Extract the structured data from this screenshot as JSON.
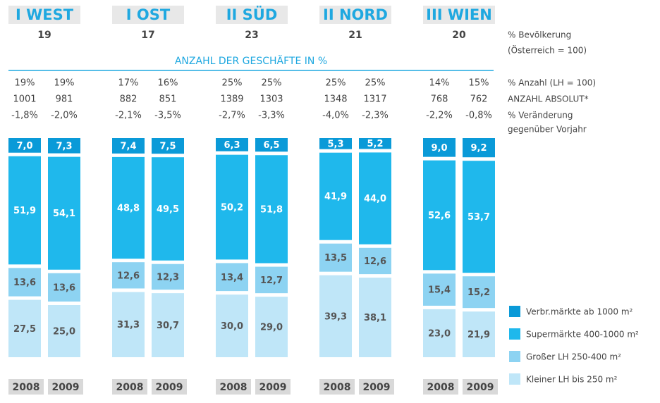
{
  "chart_data": {
    "type": "stacked_bar",
    "subtitle": "ANZAHL DER GESCHÄFTE IN %",
    "years": [
      "2008",
      "2009"
    ],
    "regions": [
      {
        "name": "I WEST",
        "population": 19,
        "share": [
          19,
          19
        ],
        "share_labels": [
          "19%",
          "19%"
        ],
        "count": [
          1001,
          981
        ],
        "change": [
          -1.8,
          -2.0
        ],
        "change_labels": [
          "-1,8%",
          "-2,0%"
        ]
      },
      {
        "name": "I OST",
        "population": 17,
        "share": [
          17,
          16
        ],
        "share_labels": [
          "17%",
          "16%"
        ],
        "count": [
          882,
          851
        ],
        "change": [
          -2.1,
          -3.5
        ],
        "change_labels": [
          "-2,1%",
          "-3,5%"
        ]
      },
      {
        "name": "II SÜD",
        "population": 23,
        "share": [
          25,
          25
        ],
        "share_labels": [
          "25%",
          "25%"
        ],
        "count": [
          1389,
          1303
        ],
        "change": [
          -2.7,
          -3.3
        ],
        "change_labels": [
          "-2,7%",
          "-3,3%"
        ]
      },
      {
        "name": "II NORD",
        "population": 21,
        "share": [
          25,
          25
        ],
        "share_labels": [
          "25%",
          "25%"
        ],
        "count": [
          1348,
          1317
        ],
        "change": [
          -4.0,
          -2.3
        ],
        "change_labels": [
          "-4,0%",
          "-2,3%"
        ]
      },
      {
        "name": "III WIEN",
        "population": 20,
        "share": [
          14,
          15
        ],
        "share_labels": [
          "14%",
          "15%"
        ],
        "count": [
          768,
          762
        ],
        "change": [
          -2.2,
          -0.8
        ],
        "change_labels": [
          "-2,2%",
          "-0,8%"
        ]
      }
    ],
    "row_labels": {
      "population": [
        "% Bevölkerung",
        "(Österreich = 100)"
      ],
      "share": [
        "% Anzahl (LH = 100)"
      ],
      "count": [
        "ANZAHL ABSOLUT*"
      ],
      "change": [
        "% Veränderung",
        "gegenüber Vorjahr"
      ]
    },
    "series": [
      {
        "name": "Verbr.märkte ab 1000 m²",
        "color": "#0a9ad8",
        "values": [
          7.0,
          7.3,
          7.4,
          7.5,
          6.3,
          6.5,
          5.3,
          5.2,
          9.0,
          9.2
        ],
        "value_labels": [
          "7,0",
          "7,3",
          "7,4",
          "7,5",
          "6,3",
          "6,5",
          "5,3",
          "5,2",
          "9,0",
          "9,2"
        ]
      },
      {
        "name": "Supermärkte 400-1000 m²",
        "color": "#1fb8ec",
        "values": [
          51.9,
          54.1,
          48.8,
          49.5,
          50.2,
          51.8,
          41.9,
          44.0,
          52.6,
          53.7
        ],
        "value_labels": [
          "51,9",
          "54,1",
          "48,8",
          "49,5",
          "50,2",
          "51,8",
          "41,9",
          "44,0",
          "52,6",
          "53,7"
        ]
      },
      {
        "name": "Großer LH 250-400 m²",
        "color": "#8dd3f2",
        "values": [
          13.6,
          13.6,
          12.6,
          12.3,
          13.4,
          12.7,
          13.5,
          12.6,
          15.4,
          15.2
        ],
        "value_labels": [
          "13,6",
          "13,6",
          "12,6",
          "12,3",
          "13,4",
          "12,7",
          "13,5",
          "12,6",
          "15,4",
          "15,2"
        ]
      },
      {
        "name": "Kleiner LH bis 250 m²",
        "color": "#bfe6f8",
        "values": [
          27.5,
          25.0,
          31.3,
          30.7,
          30.0,
          29.0,
          39.3,
          38.1,
          23.0,
          21.9
        ],
        "value_labels": [
          "27,5",
          "25,0",
          "31,3",
          "30,7",
          "30,0",
          "29,0",
          "39,3",
          "38,1",
          "23,0",
          "21,9"
        ]
      }
    ]
  }
}
